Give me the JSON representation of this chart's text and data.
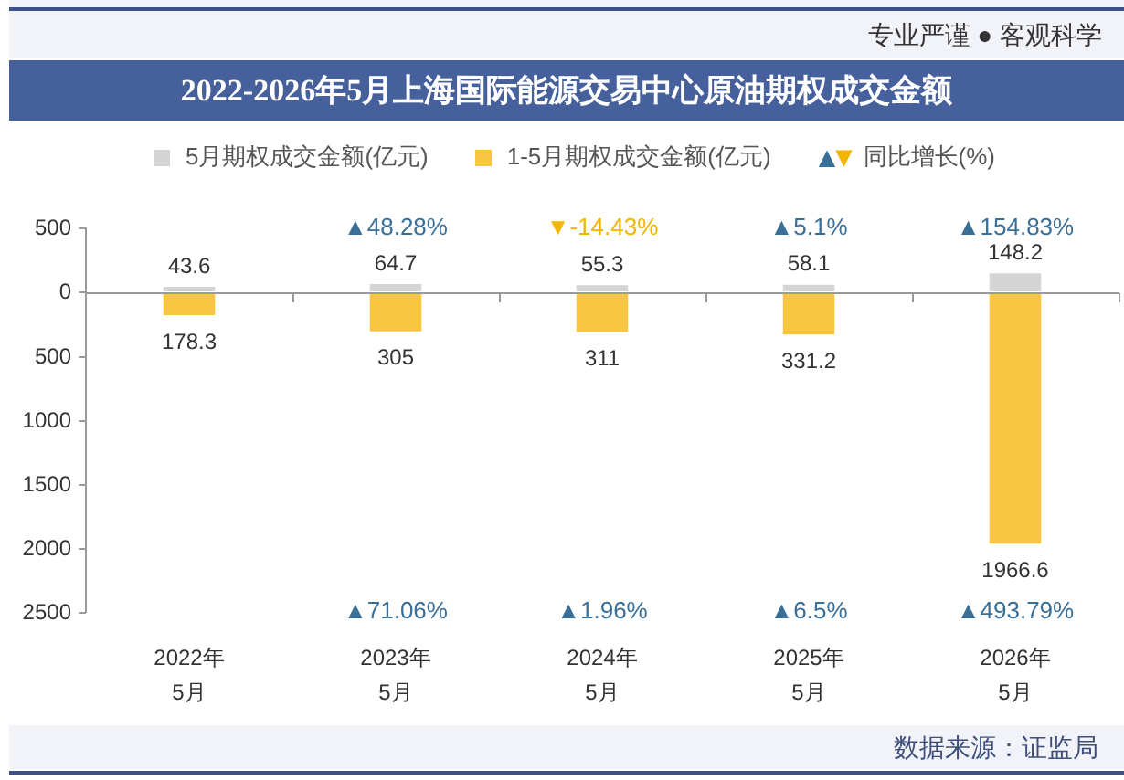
{
  "chart_data": {
    "type": "bar",
    "title": "2022-2026年5月上海国际能源交易中心原油期权成交金额",
    "categories": [
      "2022年\n5月",
      "2023年\n5月",
      "2024年\n5月",
      "2025年\n5月",
      "2026年\n5月"
    ],
    "series": [
      {
        "name": "5月期权成交金额(亿元)",
        "color": "#d4d4d4",
        "values": [
          43.6,
          64.7,
          55.3,
          58.1,
          148.2
        ],
        "value_labels": [
          "43.6",
          "64.7",
          "55.3",
          "58.1",
          "148.2"
        ]
      },
      {
        "name": "1-5月期权成交金额(亿元)",
        "color": "#f8c640",
        "axis": "y2",
        "values": [
          178.3,
          305,
          311,
          331.2,
          1966.6
        ],
        "value_labels": [
          "178.3",
          "305",
          "311",
          "331.2",
          "1966.6"
        ]
      }
    ],
    "stacked": true,
    "ylim": [
      -2500,
      500
    ],
    "yticks": [
      500,
      0
    ],
    "y2lim": [
      2500,
      -500
    ],
    "y2ticks": [
      500,
      1000,
      1500,
      2000,
      2500
    ],
    "legend": "top",
    "annotations": [
      "专业严谨 ● 客观科学",
      "▲▼同比增长(%)",
      "数据来源：证监局",
      "▲48.28%",
      "▼-14.43%",
      "▲5.1%",
      "▲154.83%",
      "▲71.06%",
      "▲1.96%",
      "▲6.5%",
      "▲493.79%"
    ]
  }
}
